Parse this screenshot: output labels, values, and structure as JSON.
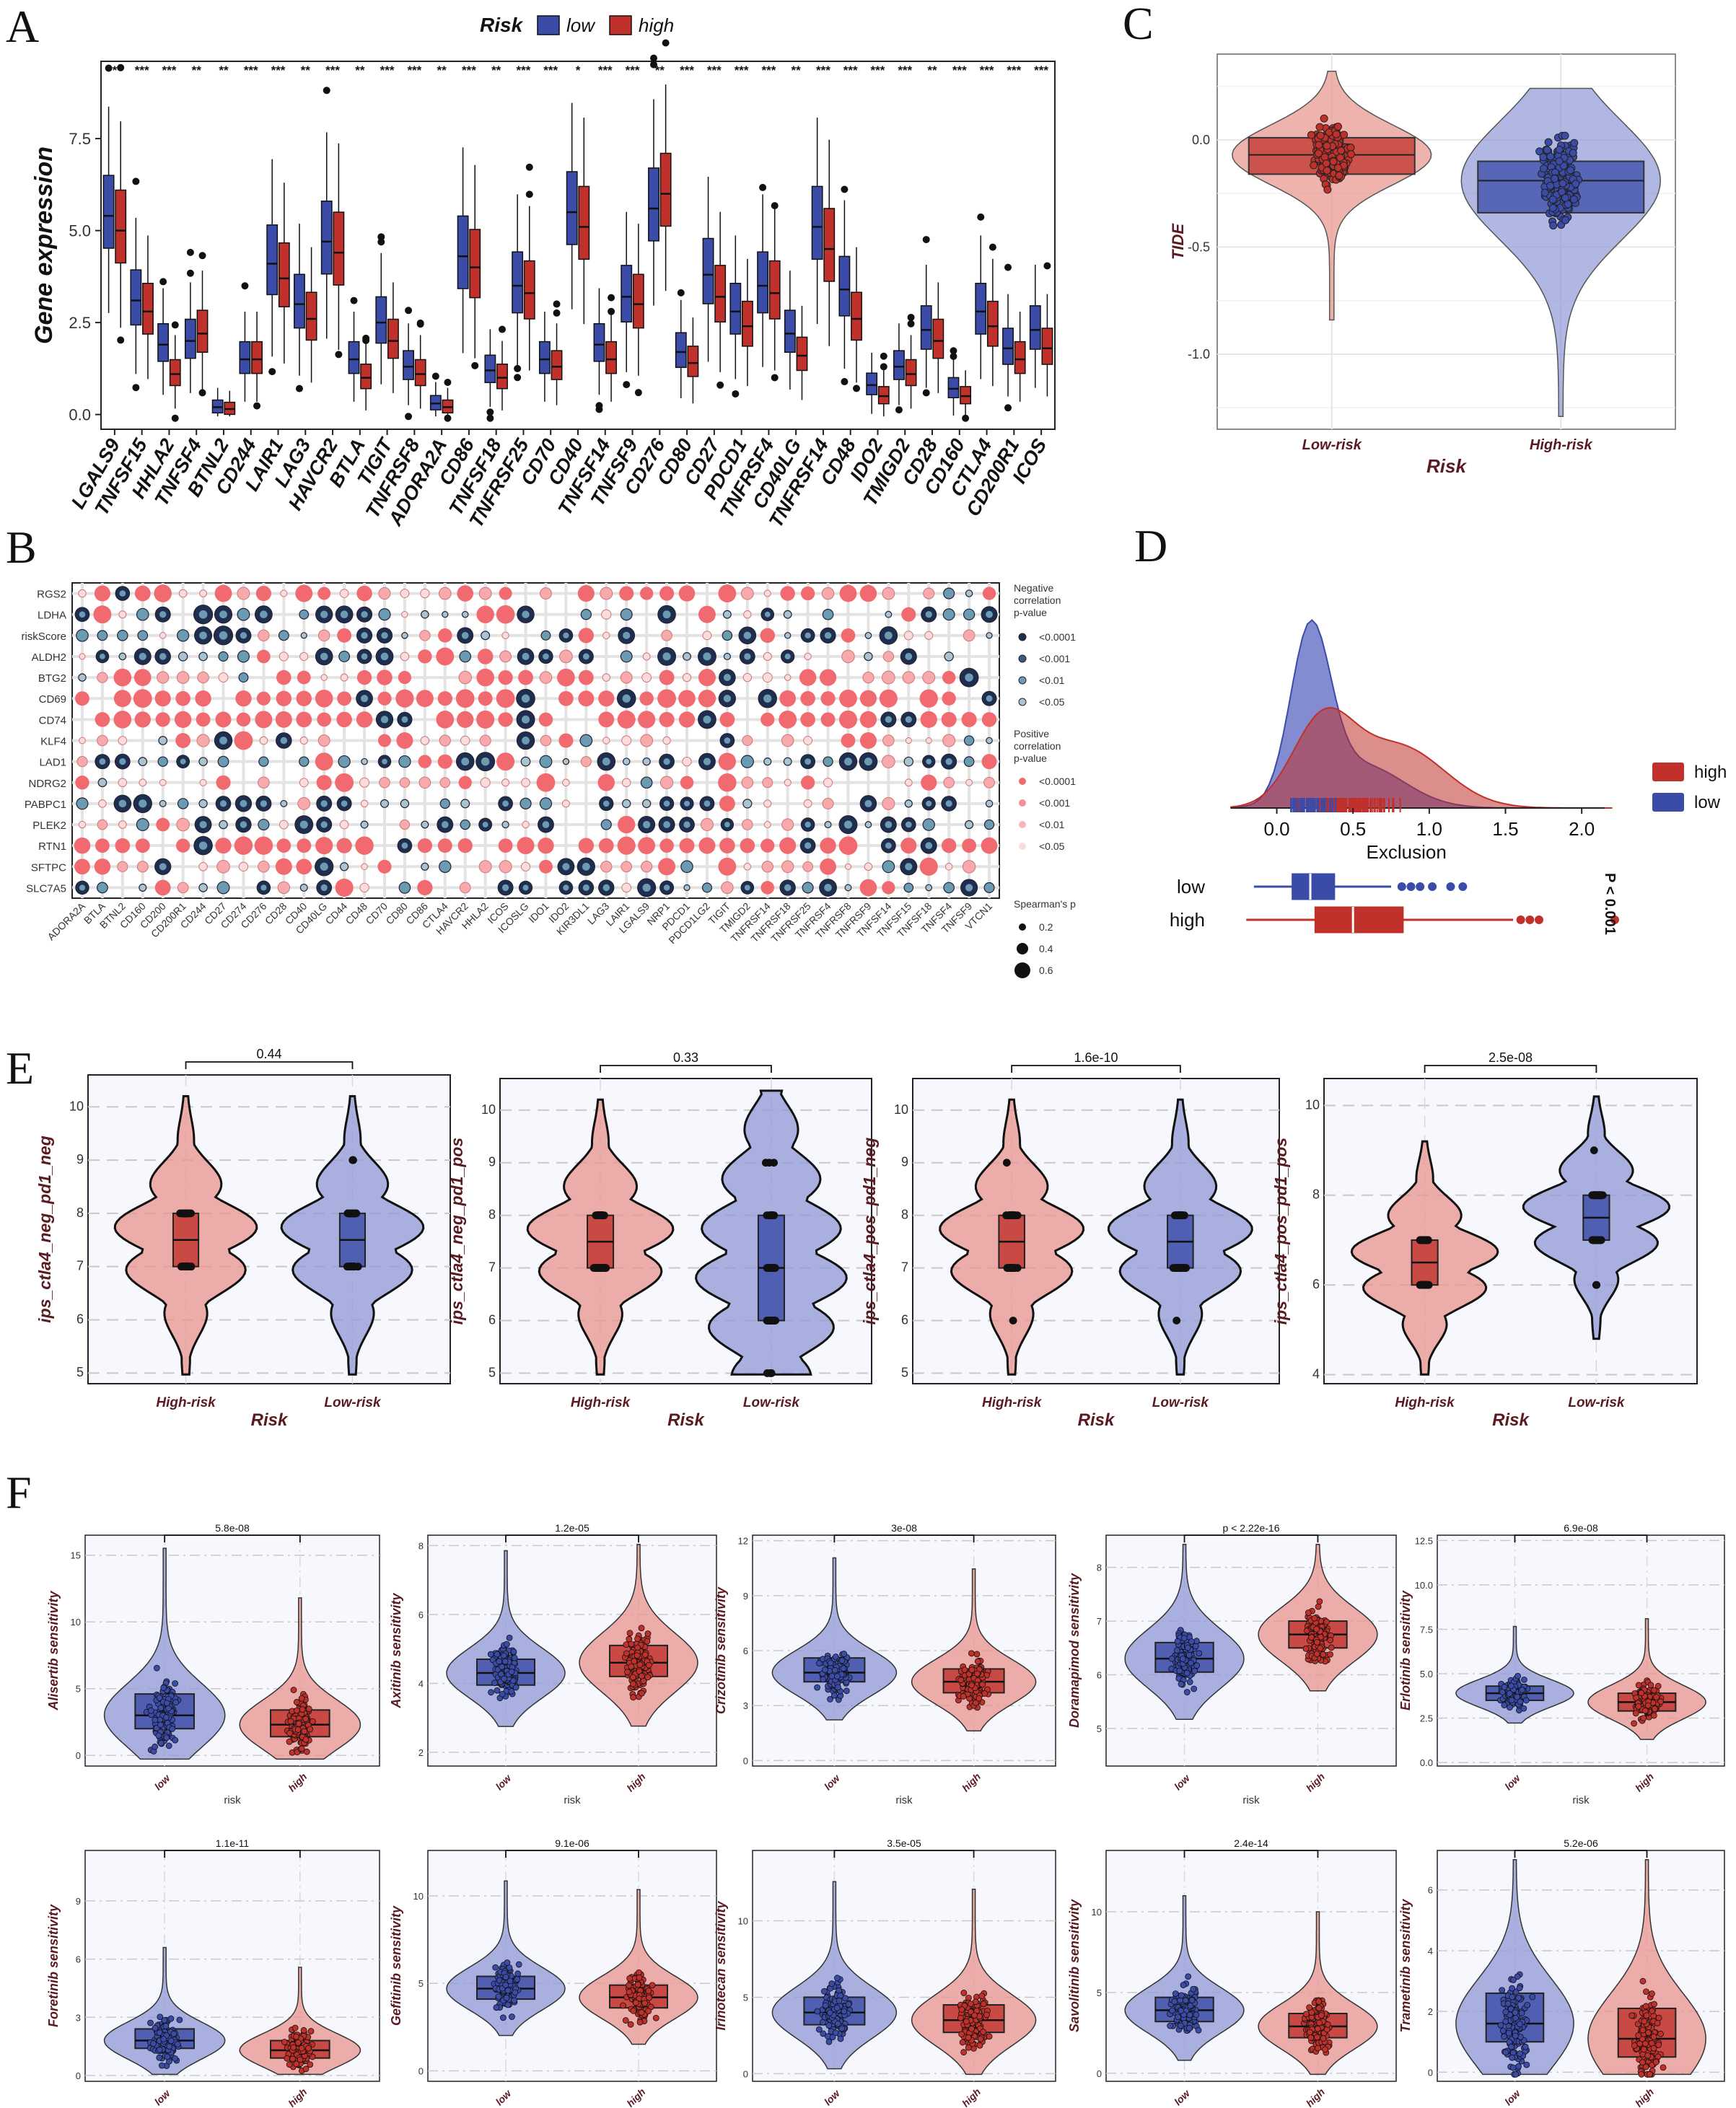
{
  "panels": [
    "A",
    "B",
    "C",
    "D",
    "E",
    "F"
  ],
  "colors": {
    "low": "#3b4ba8",
    "high": "#c0312b",
    "low_light": "#8f98d6",
    "high_light": "#e8938c",
    "axis_title": "#5a1a22"
  },
  "chart_data": [
    {
      "id": "A",
      "type": "box",
      "title": "",
      "legend_title": "Risk",
      "legend": [
        "low",
        "high"
      ],
      "ylabel": "Gene expression",
      "xlabel": "",
      "ylim": [
        -0.4,
        9.6
      ],
      "yticks": [
        "0.0",
        "2.5",
        "5.0",
        "7.5"
      ],
      "categories": [
        "LGALS9",
        "TNFSF15",
        "HHLA2",
        "TNFSF4",
        "BTNL2",
        "CD244",
        "LAIR1",
        "LAG3",
        "HAVCR2",
        "BTLA",
        "TIGIT",
        "TNFRSF8",
        "ADORA2A",
        "CD86",
        "TNFSF18",
        "TNFRSF25",
        "CD70",
        "CD40",
        "TNFSF14",
        "TNFSF9",
        "CD276",
        "CD80",
        "CD27",
        "PDCD1",
        "TNFRSF4",
        "CD40LG",
        "TNFRSF14",
        "CD48",
        "IDO2",
        "TMIGD2",
        "CD28",
        "CD160",
        "CTLA4",
        "CD200R1",
        "ICOS"
      ],
      "significance": [
        "***",
        "***",
        "***",
        "**",
        "**",
        "***",
        "***",
        "**",
        "***",
        "**",
        "***",
        "***",
        "**",
        "***",
        "**",
        "***",
        "***",
        "*",
        "***",
        "***",
        "**",
        "***",
        "***",
        "***",
        "***",
        "**",
        "***",
        "***",
        "***",
        "***",
        "**",
        "***",
        "***",
        "***",
        "***"
      ],
      "series": [
        {
          "name": "low",
          "medians": [
            5.4,
            3.1,
            1.9,
            2.0,
            0.2,
            1.5,
            4.1,
            3.0,
            4.7,
            1.5,
            2.5,
            1.3,
            0.3,
            4.3,
            1.2,
            3.5,
            1.5,
            5.5,
            1.9,
            3.2,
            5.6,
            1.7,
            3.8,
            2.8,
            3.5,
            2.2,
            5.1,
            3.4,
            0.8,
            1.3,
            2.3,
            0.7,
            2.8,
            1.8,
            2.3
          ]
        },
        {
          "name": "high",
          "medians": [
            5.0,
            2.8,
            1.1,
            2.2,
            0.15,
            1.5,
            3.7,
            2.6,
            4.4,
            1.0,
            2.0,
            1.1,
            0.2,
            4.0,
            1.0,
            3.3,
            1.3,
            5.1,
            1.5,
            3.0,
            6.0,
            1.4,
            3.2,
            2.4,
            3.3,
            1.6,
            4.5,
            2.6,
            0.5,
            1.1,
            2.0,
            0.5,
            2.4,
            1.5,
            1.8
          ]
        }
      ]
    },
    {
      "id": "B",
      "type": "bubble",
      "rows": [
        "RGS2",
        "LDHA",
        "riskScore",
        "ALDH2",
        "BTG2",
        "CD69",
        "CD74",
        "KLF4",
        "LAD1",
        "NDRG2",
        "PABPC1",
        "PLEK2",
        "RTN1",
        "SFTPC",
        "SLC7A5"
      ],
      "columns": [
        "ADORA2A",
        "BTLA",
        "BTNL2",
        "CD160",
        "CD200",
        "CD200R1",
        "CD244",
        "CD27",
        "CD274",
        "CD276",
        "CD28",
        "CD40",
        "CD40LG",
        "CD44",
        "CD48",
        "CD70",
        "CD80",
        "CD86",
        "CTLA4",
        "HAVCR2",
        "HHLA2",
        "ICOS",
        "ICOSLG",
        "IDO1",
        "IDO2",
        "KIR3DL1",
        "LAG3",
        "LAIR1",
        "LGALS9",
        "NRP1",
        "PDCD1",
        "PDCD1LG2",
        "TIGIT",
        "TMIGD2",
        "TNFRSF14",
        "TNFRSF18",
        "TNFRSF25",
        "TNFRSF4",
        "TNFRSF8",
        "TNFRSF9",
        "TNFSF14",
        "TNFSF15",
        "TNFSF18",
        "TNFSF4",
        "TNFSF9",
        "VTCN1"
      ],
      "row_pattern": [
        1,
        -1,
        -1,
        -1,
        1,
        2,
        2,
        1,
        -1,
        1,
        -1,
        -1,
        2,
        1,
        -1
      ],
      "legend_negative_title": [
        "Negative",
        "correlation",
        "p-value"
      ],
      "legend_positive_title": [
        "Positive",
        "correlation",
        "p-value"
      ],
      "pvalue_levels": [
        "<0.0001",
        "<0.001",
        "<0.01",
        "<0.05"
      ],
      "size_title": "Spearman's p",
      "size_levels": [
        "0.2",
        "0.4",
        "0.6"
      ]
    },
    {
      "id": "C",
      "type": "violin-box",
      "categories": [
        "Low-risk",
        "High-risk"
      ],
      "xlabel": "Risk",
      "ylabel": "TIDE",
      "ylim": [
        -1.35,
        0.4
      ],
      "yticks": [
        "0.0",
        "-0.5",
        "-1.0"
      ],
      "medians": [
        -0.07,
        -0.19
      ],
      "q1": [
        -0.16,
        -0.34
      ],
      "q3": [
        0.01,
        -0.1
      ],
      "min": [
        -0.84,
        -1.29
      ],
      "max": [
        0.32,
        0.24
      ]
    },
    {
      "id": "D",
      "type": "density-box",
      "xlabel": "Exclusion",
      "xlim": [
        -0.4,
        2.25
      ],
      "xticks": [
        "0.0",
        "0.5",
        "1.0",
        "1.5",
        "2.0"
      ],
      "legend": [
        "high",
        "low"
      ],
      "groups": [
        "low",
        "high"
      ],
      "low_box": {
        "q1": 0.1,
        "median": 0.22,
        "q3": 0.38,
        "wmin": -0.15,
        "wmax": 0.75
      },
      "high_box": {
        "q1": 0.25,
        "median": 0.5,
        "q3": 0.83,
        "wmin": -0.2,
        "wmax": 1.55
      },
      "p_label": "P < 0.001"
    },
    {
      "id": "E",
      "type": "violin-box",
      "xlabel": "Risk",
      "categories": [
        "High-risk",
        "Low-risk"
      ],
      "subplots": [
        {
          "ylabel": "ips_ctla4_neg_pd1_neg",
          "p": "0.44",
          "ylim": [
            4.8,
            10.6
          ],
          "yticks": [
            "5",
            "6",
            "7",
            "8",
            "9",
            "10"
          ],
          "median": [
            7.5,
            7.5
          ],
          "q1": [
            7,
            7
          ],
          "q3": [
            8,
            8
          ]
        },
        {
          "ylabel": "ips_ctla4_neg_pd1_pos",
          "p": "0.33",
          "ylim": [
            4.8,
            10.6
          ],
          "yticks": [
            "5",
            "6",
            "7",
            "8",
            "9",
            "10"
          ],
          "median": [
            7.5,
            7
          ],
          "q1": [
            7,
            6
          ],
          "q3": [
            8,
            8
          ]
        },
        {
          "ylabel": "ips_ctla4_pos_pd1_neg",
          "p": "1.6e-10",
          "ylim": [
            4.8,
            10.6
          ],
          "yticks": [
            "5",
            "6",
            "7",
            "8",
            "9",
            "10"
          ],
          "median": [
            7.5,
            7.5
          ],
          "q1": [
            7,
            7
          ],
          "q3": [
            8,
            8
          ]
        },
        {
          "ylabel": "ips_ctla4_pos_pd1_pos",
          "p": "2.5e-08",
          "ylim": [
            3.8,
            10.6
          ],
          "yticks": [
            "4",
            "6",
            "8",
            "10"
          ],
          "median": [
            6.5,
            7.5
          ],
          "q1": [
            6,
            7
          ],
          "q3": [
            7,
            8
          ]
        }
      ]
    },
    {
      "id": "F",
      "type": "violin-box",
      "xlabel": "risk",
      "categories": [
        "low",
        "high"
      ],
      "subplots": [
        {
          "ylabel": "Alisertib sensitivity",
          "p": "5.8e-08",
          "ylim": [
            -0.8,
            16.5
          ],
          "yticks": [
            "0",
            "5",
            "10",
            "15"
          ],
          "median": [
            3.0,
            2.3
          ],
          "q1": [
            2.0,
            1.4
          ],
          "q3": [
            4.6,
            3.4
          ]
        },
        {
          "ylabel": "Axitinib sensitivity",
          "p": "1.2e-05",
          "ylim": [
            1.6,
            8.3
          ],
          "yticks": [
            "2",
            "4",
            "6",
            "8"
          ],
          "median": [
            4.3,
            4.6
          ],
          "q1": [
            3.95,
            4.2
          ],
          "q3": [
            4.7,
            5.1
          ]
        },
        {
          "ylabel": "Crizotinib sensitivity",
          "p": "3e-08",
          "ylim": [
            -0.3,
            12.3
          ],
          "yticks": [
            "0",
            "3",
            "6",
            "9",
            "12"
          ],
          "median": [
            4.8,
            4.3
          ],
          "q1": [
            4.3,
            3.7
          ],
          "q3": [
            5.6,
            5.0
          ]
        },
        {
          "ylabel": "Doramapimod sensitivity",
          "p": "p < 2.22e-16",
          "ylim": [
            4.3,
            8.6
          ],
          "yticks": [
            "5",
            "6",
            "7",
            "8"
          ],
          "median": [
            6.3,
            6.75
          ],
          "q1": [
            6.05,
            6.5
          ],
          "q3": [
            6.6,
            7.0
          ]
        },
        {
          "ylabel": "Erlotinib sensitivity",
          "p": "6.9e-08",
          "ylim": [
            -0.2,
            12.8
          ],
          "yticks": [
            "0.0",
            "2.5",
            "5.0",
            "7.5",
            "10.0",
            "12.5"
          ],
          "median": [
            3.9,
            3.4
          ],
          "q1": [
            3.5,
            2.9
          ],
          "q3": [
            4.3,
            3.9
          ]
        },
        {
          "ylabel": "Foretinib sensitivity",
          "p": "1.1e-11",
          "ylim": [
            -0.3,
            11.6
          ],
          "yticks": [
            "0",
            "3",
            "6",
            "9"
          ],
          "median": [
            1.8,
            1.3
          ],
          "q1": [
            1.4,
            0.9
          ],
          "q3": [
            2.4,
            1.8
          ]
        },
        {
          "ylabel": "Gefitinib sensitivity",
          "p": "9.1e-06",
          "ylim": [
            -0.6,
            12.6
          ],
          "yticks": [
            "0",
            "5",
            "10"
          ],
          "median": [
            4.7,
            4.2
          ],
          "q1": [
            4.1,
            3.6
          ],
          "q3": [
            5.4,
            4.9
          ]
        },
        {
          "ylabel": "Irinotecan sensitivity",
          "p": "3.5e-05",
          "ylim": [
            -0.5,
            14.6
          ],
          "yticks": [
            "0",
            "5",
            "10"
          ],
          "median": [
            4.0,
            3.5
          ],
          "q1": [
            3.2,
            2.7
          ],
          "q3": [
            5.0,
            4.5
          ]
        },
        {
          "ylabel": "Savolitinib sensitivity",
          "p": "2.4e-14",
          "ylim": [
            -0.5,
            13.8
          ],
          "yticks": [
            "0",
            "5",
            "10"
          ],
          "median": [
            3.9,
            2.9
          ],
          "q1": [
            3.2,
            2.2
          ],
          "q3": [
            4.7,
            3.7
          ]
        },
        {
          "ylabel": "Trametinib sensitivity",
          "p": "5.2e-06",
          "ylim": [
            -0.3,
            7.3
          ],
          "yticks": [
            "0",
            "2",
            "4",
            "6"
          ],
          "median": [
            1.6,
            1.1
          ],
          "q1": [
            1.0,
            0.5
          ],
          "q3": [
            2.6,
            2.1
          ]
        }
      ]
    }
  ]
}
